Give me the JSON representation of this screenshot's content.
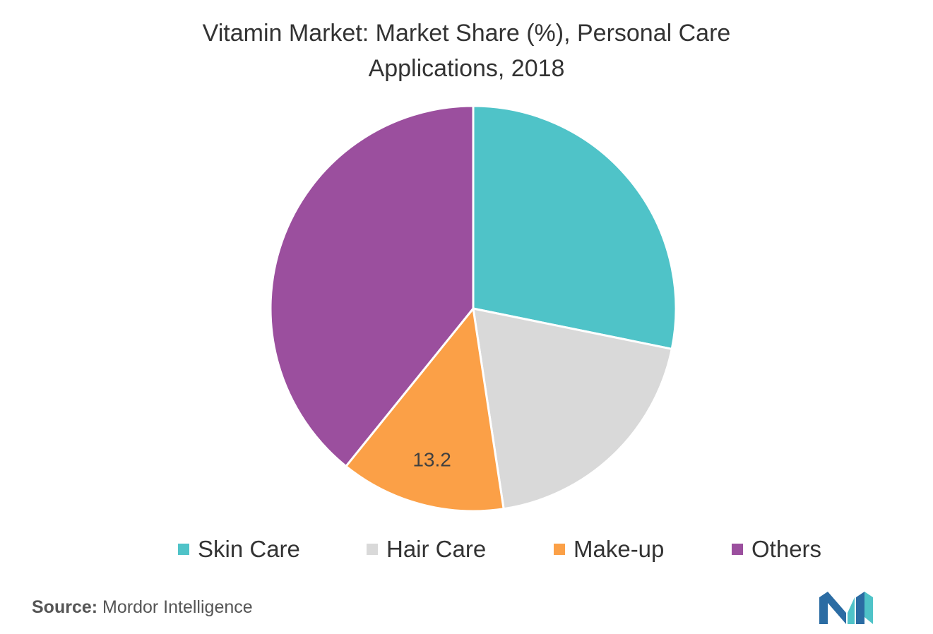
{
  "chart_data": {
    "type": "pie",
    "title_lines": [
      "Vitamin Market: Market Share (%), Personal Care",
      "Applications, 2018"
    ],
    "categories": [
      "Skin Care",
      "Hair Care",
      "Make-up",
      "Others"
    ],
    "values": [
      28.2,
      19.4,
      13.2,
      39.2
    ],
    "data_labels": [
      "",
      "",
      "13.2",
      ""
    ],
    "colors": [
      "#4fc3c8",
      "#d9d9d9",
      "#fba047",
      "#9b4f9e"
    ],
    "legend_position": "bottom",
    "start_angle": "12 o'clock",
    "direction": "clockwise"
  },
  "source": {
    "label": "Source:",
    "text": "Mordor Intelligence"
  },
  "logo": {
    "icon": "mordor-intelligence-logo-icon",
    "colors": [
      "#2b6ca3",
      "#4fc3c8"
    ]
  }
}
